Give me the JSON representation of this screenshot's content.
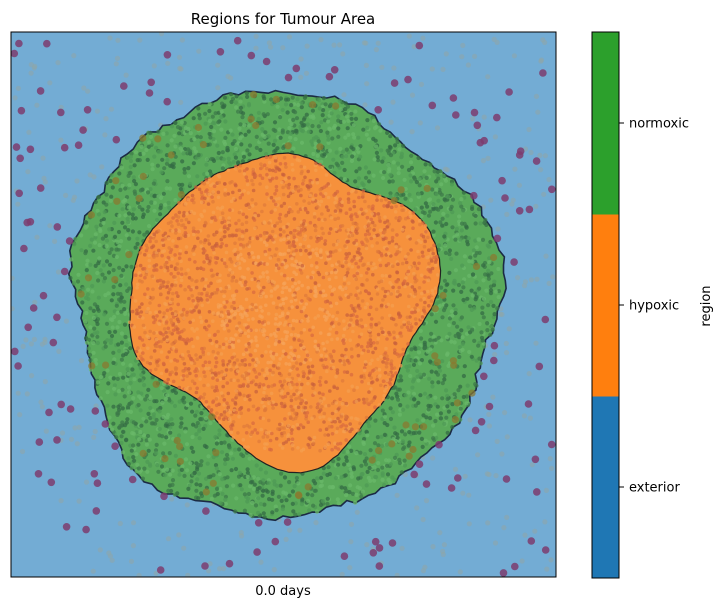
{
  "chart_data": {
    "type": "heatmap",
    "title": "Regions for Tumour Area",
    "xlabel": "0.0 days",
    "colorbar_label": "region",
    "regions": [
      {
        "name": "exterior",
        "color": "#1f77b4"
      },
      {
        "name": "hypoxic",
        "color": "#ff7f0e"
      },
      {
        "name": "normoxic",
        "color": "#2ca02c"
      }
    ],
    "overlay_colors": {
      "exterior_fill": "#73acd4",
      "normoxic_fill": "#5aaa5a",
      "normoxic_cell": "#3e7a4a",
      "hypoxic_fill": "#f6913c",
      "hypoxic_cell": "#c8603c",
      "immune_cell": "#7d3c6e",
      "sparse_cell": "#8fa6a6"
    },
    "axes": {
      "xticks": [],
      "yticks": []
    }
  }
}
